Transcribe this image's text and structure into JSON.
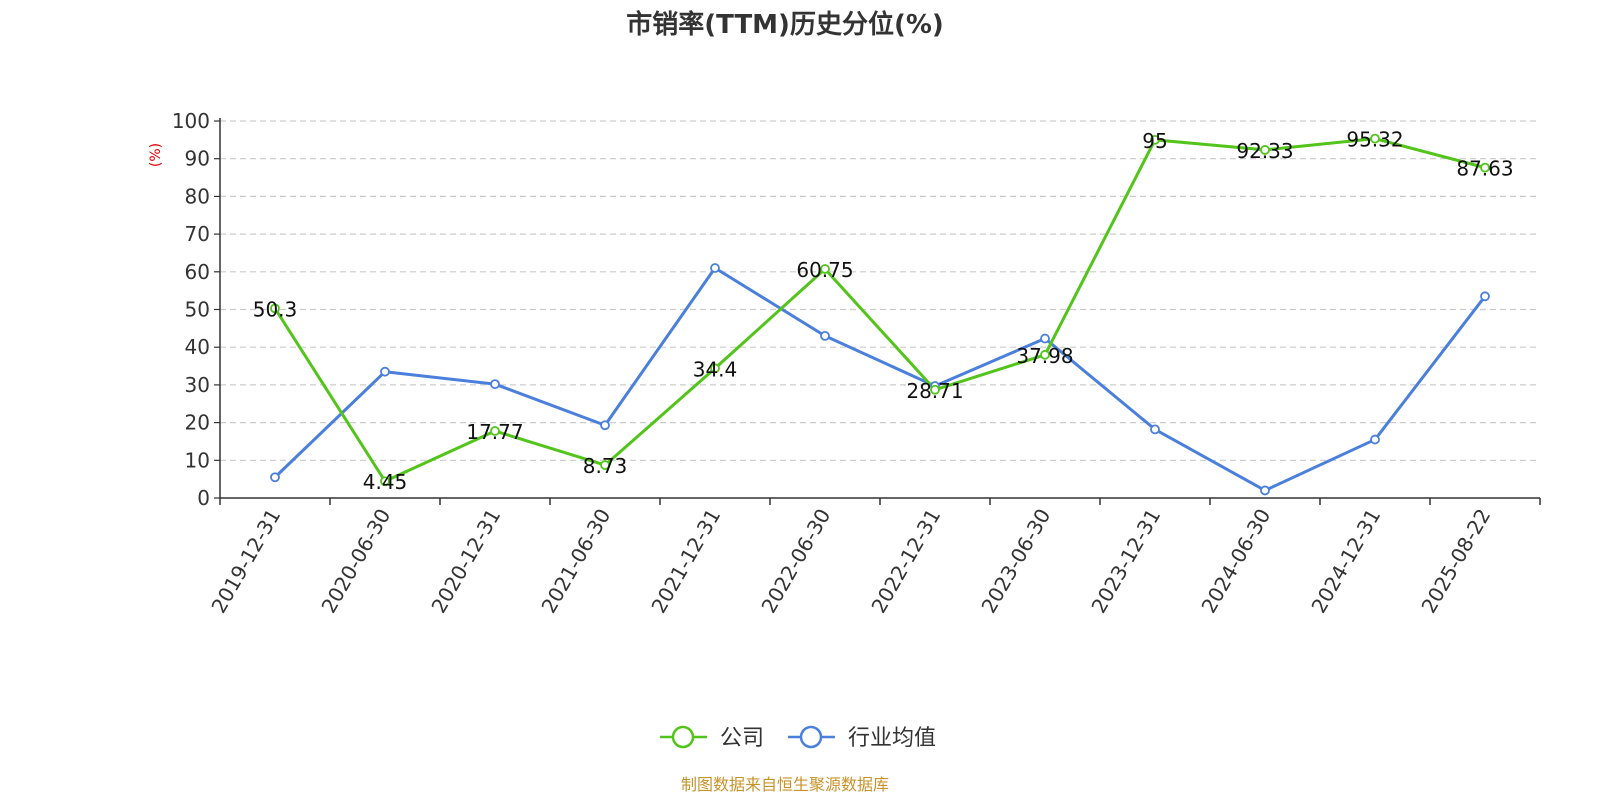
{
  "chart_data": {
    "type": "line",
    "title": "市销率(TTM)历史分位(%)",
    "ylabel": "(%)",
    "ylim": [
      0,
      100
    ],
    "yticks": [
      0,
      10,
      20,
      30,
      40,
      50,
      60,
      70,
      80,
      90,
      100
    ],
    "grid": true,
    "legend_position": "bottom-center",
    "categories": [
      "2019-12-31",
      "2020-06-30",
      "2020-12-31",
      "2021-06-30",
      "2021-12-31",
      "2022-06-30",
      "2022-12-31",
      "2023-06-30",
      "2023-12-31",
      "2024-06-30",
      "2024-12-31",
      "2025-08-22"
    ],
    "series": [
      {
        "name": "公司",
        "color": "#52c41a",
        "values": [
          50.3,
          4.45,
          17.77,
          8.73,
          34.4,
          60.75,
          28.71,
          37.98,
          95,
          92.33,
          95.32,
          87.63
        ],
        "labels": [
          "50.3",
          "4.45",
          "17.77",
          "8.73",
          "34.4",
          "60.75",
          "28.71",
          "37.98",
          "95",
          "92.33",
          "95.32",
          "87.63"
        ]
      },
      {
        "name": "行业均值",
        "color": "#4a7fdc",
        "values": [
          5.5,
          33.5,
          30.2,
          19.3,
          61.0,
          43.0,
          29.7,
          42.3,
          18.2,
          2.0,
          15.5,
          53.5
        ]
      }
    ],
    "source": "制图数据来自恒生聚源数据库"
  }
}
